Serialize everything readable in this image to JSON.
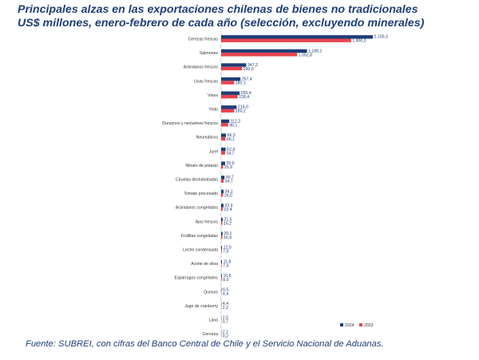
{
  "title_line1": "Principales alzas en las exportaciones chilenas de bienes no tradicionales",
  "title_line2": "US$ millones, enero-febrero de cada año (selección, excluyendo minerales)",
  "source": "Fuente: SUBREI, con cifras del Banco Central de Chile y el Servicio Nacional de Aduanas.",
  "chart_data": {
    "type": "bar",
    "orientation": "horizontal",
    "categories": [
      "Cerezas frescas",
      "Salmones",
      "Arándanos frescos",
      "Uvas frescas",
      "Vinos",
      "Yodo",
      "Duraznos y nectarines frescos",
      "Neumáticos",
      "Jurel",
      "Nitrato de potasio",
      "Ciruelas deshidratadas",
      "Tomate procesado",
      "Arándanos congelados",
      "Ajos frescos",
      "Frutillas congeladas",
      "Leche condensada",
      "Aceite de oliva",
      "Espárragos congelados",
      "Quesos",
      "Jugo de cranberry",
      "Lana",
      "Cerveza"
    ],
    "series": [
      {
        "name": "2024",
        "color": "#1f3e78",
        "values": [
          2100.3,
          1189.1,
          347.2,
          267.4,
          255.4,
          214.0,
          112.2,
          66.3,
          62.4,
          55.0,
          46.7,
          34.1,
          32.9,
          21.5,
          20.1,
          12.0,
          11.8,
          10.6,
          6.5,
          4.4,
          2.5,
          2.1
        ],
        "labels": [
          "2.100,3",
          "1.189,1",
          "347,2",
          "267,4",
          "255,4",
          "214,0",
          "112,2",
          "66,3",
          "62,4",
          "55,0",
          "46,7",
          "34,1",
          "32,9",
          "21,5",
          "20,1",
          "12,0",
          "11,8",
          "10,6",
          "6,5",
          "4,4",
          "2,5",
          "2,1"
        ]
      },
      {
        "name": "2023",
        "color": "#e8434e",
        "values": [
          1800.0,
          1052.8,
          290.0,
          180.1,
          228.4,
          180.2,
          96.1,
          60.1,
          54.7,
          25.9,
          34.7,
          26.0,
          22.4,
          16.2,
          16.9,
          7.9,
          7.4,
          8.9,
          4.4,
          2.2,
          0.7,
          0.2
        ],
        "labels": [
          "1.800,0",
          "1.052,8",
          "290,0",
          "180,1",
          "228,4",
          "180,2",
          "96,1",
          "60,1",
          "54,7",
          "25,9",
          "34,7",
          "26,0",
          "22,4",
          "16,2",
          "16,9",
          "7,9",
          "7,4",
          "8,9",
          "4,4",
          "2,2",
          "0,7",
          "0,2"
        ]
      }
    ],
    "xlim": [
      0,
      2100.3
    ],
    "grid": false,
    "legend_position": "bottom-right"
  }
}
